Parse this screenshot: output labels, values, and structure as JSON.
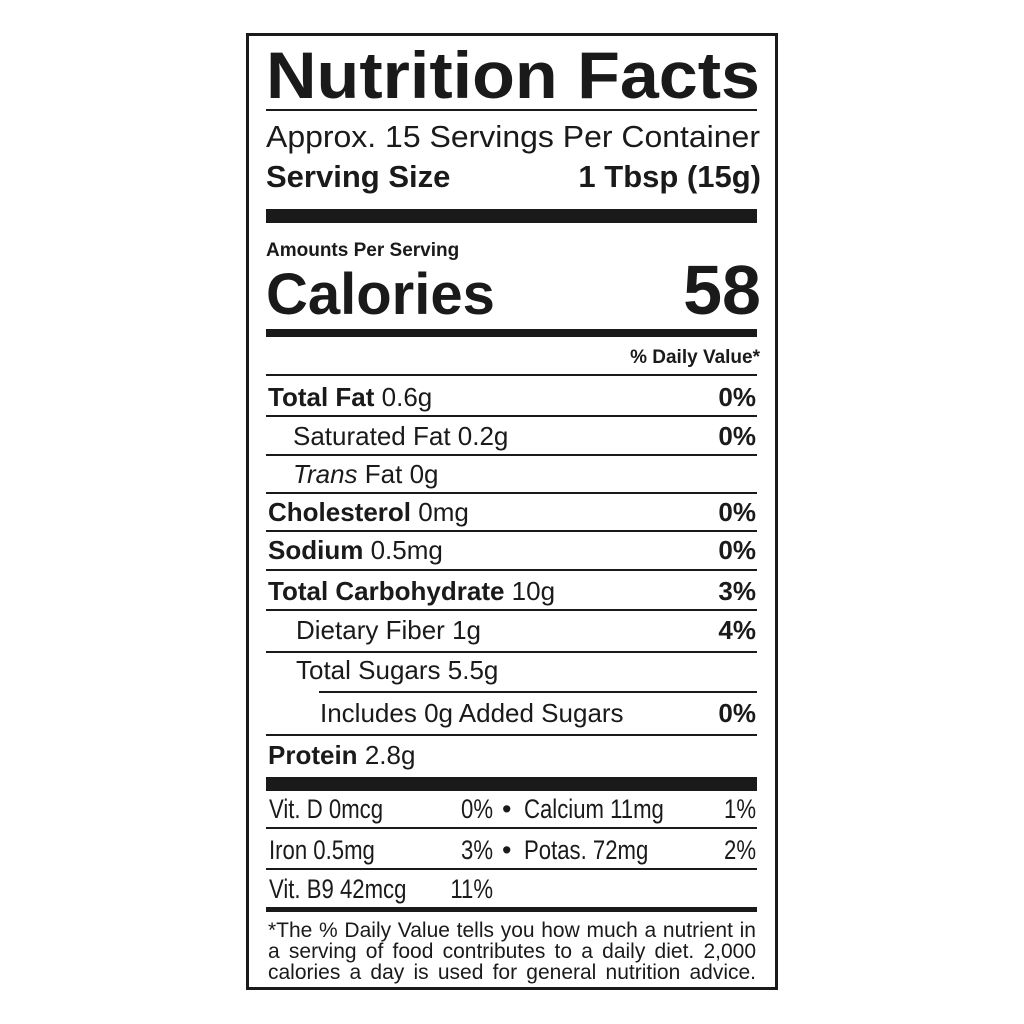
{
  "title": "Nutrition Facts",
  "servings_per_container": "Approx. 15 Servings Per Container",
  "serving_size": {
    "label": "Serving Size",
    "value": "1 Tbsp (15g)"
  },
  "amounts_per_serving": "Amounts Per Serving",
  "calories": {
    "label": "Calories",
    "value": "58"
  },
  "daily_value_header": "% Daily Value*",
  "nutrients": [
    {
      "name": "Total Fat",
      "amount": "0.6g",
      "dv": "0%"
    },
    {
      "name": "Saturated Fat",
      "amount": "0.2g",
      "dv": "0%"
    },
    {
      "name": "Trans",
      "name_rest": "Fat",
      "amount": "0g",
      "dv": ""
    },
    {
      "name": "Cholesterol",
      "amount": "0mg",
      "dv": "0%"
    },
    {
      "name": "Sodium",
      "amount": "0.5mg",
      "dv": "0%"
    },
    {
      "name": "Total Carbohydrate",
      "amount": "10g",
      "dv": "3%"
    },
    {
      "name": "Dietary Fiber",
      "amount": "1g",
      "dv": "4%"
    },
    {
      "name": "Total Sugars",
      "amount": "5.5g",
      "dv": ""
    },
    {
      "name": "Includes 0g Added Sugars",
      "amount": "",
      "dv": "0%"
    },
    {
      "name": "Protein",
      "amount": "2.8g",
      "dv": ""
    }
  ],
  "vitamins": [
    {
      "left": "Vit. D 0mcg",
      "left_dv": "0%",
      "bullet": "•",
      "right": "Calcium 11mg",
      "right_dv": "1%"
    },
    {
      "left": "Iron 0.5mg",
      "left_dv": "3%",
      "bullet": "•",
      "right": "Potas. 72mg",
      "right_dv": "2%"
    },
    {
      "left": "Vit. B9 42mcg",
      "left_dv": "11%"
    }
  ],
  "footnote_lines": [
    "*The % Daily Value tells you how much a nutrient in",
    "a serving of food contributes to a daily diet. 2,000",
    "calories a day is used for general nutrition advice."
  ]
}
